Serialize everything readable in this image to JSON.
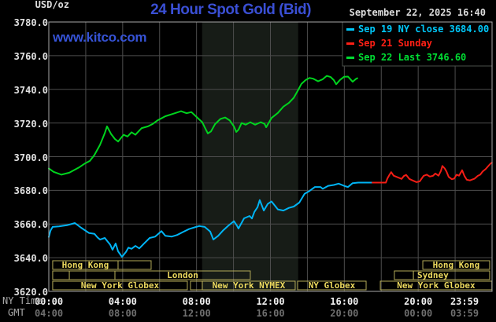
{
  "header": {
    "units_label": "USD/oz",
    "title": "24 Hour Spot Gold (Bid)",
    "title_color": "#3a4fd4",
    "datetime": "September 22, 2025 16:40",
    "watermark": "www.kitco.com",
    "watermark_color": "#3653d6"
  },
  "legend": {
    "items": [
      {
        "label": "Sep 19 NY close 3684.00",
        "color": "#00c8fa"
      },
      {
        "label": "Sep 21 Sunday",
        "color": "#ff1f15"
      },
      {
        "label": "Sep 22 Last 3746.60",
        "color": "#00dd33"
      }
    ]
  },
  "axes": {
    "ny_time_label": "NY Time",
    "gmt_label": "GMT",
    "y_ticks": [
      "3780.0",
      "3760.0",
      "3740.0",
      "3720.0",
      "3700.0",
      "3680.0",
      "3660.0",
      "3640.0",
      "3620.0"
    ],
    "x_ticks_ny": [
      "00:00",
      "04:00",
      "08:00",
      "12:00",
      "16:00",
      "20:00",
      "23:59"
    ],
    "x_ticks_gmt": [
      "04:00",
      "08:00",
      "12:00",
      "16:00",
      "20:00",
      "00:00",
      "03:59"
    ]
  },
  "colors": {
    "background": "#000000",
    "grid": "#4d4d4d",
    "border": "#a9a9a9",
    "legend_border": "#4a4f4a",
    "band": "#171c17",
    "session_border": "#b3aa58",
    "session_text": "#ecd95e"
  },
  "chart_data": {
    "type": "line",
    "title": "24 Hour Spot Gold (Bid)",
    "x_unit": "NY time, hours 0-24",
    "xlim": [
      0,
      24
    ],
    "ylim": [
      3620,
      3780
    ],
    "y_grid_step": 20,
    "x_grid_step_hours": 2,
    "highlight_band_hours": [
      8.3,
      13.5
    ],
    "series": [
      {
        "name": "Sep 22 Last 3746.60",
        "color": "#00d41e",
        "points": [
          [
            0,
            3693
          ],
          [
            0.26,
            3691
          ],
          [
            0.68,
            3689.3
          ],
          [
            1.11,
            3690.5
          ],
          [
            1.62,
            3693.5
          ],
          [
            1.96,
            3696
          ],
          [
            2.22,
            3697.5
          ],
          [
            2.47,
            3701
          ],
          [
            2.77,
            3707
          ],
          [
            3.03,
            3714
          ],
          [
            3.15,
            3718
          ],
          [
            3.37,
            3713.5
          ],
          [
            3.58,
            3710.5
          ],
          [
            3.75,
            3709
          ],
          [
            4.05,
            3713
          ],
          [
            4.26,
            3712
          ],
          [
            4.48,
            3714.5
          ],
          [
            4.69,
            3713
          ],
          [
            4.9,
            3715.5
          ],
          [
            5.03,
            3717
          ],
          [
            5.37,
            3718
          ],
          [
            5.63,
            3719.5
          ],
          [
            5.88,
            3721.5
          ],
          [
            6.31,
            3724
          ],
          [
            6.74,
            3725.5
          ],
          [
            7.16,
            3727
          ],
          [
            7.46,
            3725.8
          ],
          [
            7.72,
            3726.5
          ],
          [
            8.01,
            3723.5
          ],
          [
            8.31,
            3720.5
          ],
          [
            8.44,
            3717.5
          ],
          [
            8.61,
            3713.8
          ],
          [
            8.78,
            3715
          ],
          [
            9,
            3719.3
          ],
          [
            9.29,
            3722.4
          ],
          [
            9.55,
            3723.3
          ],
          [
            9.8,
            3721.5
          ],
          [
            10.02,
            3718
          ],
          [
            10.15,
            3714.7
          ],
          [
            10.27,
            3716
          ],
          [
            10.44,
            3720
          ],
          [
            10.66,
            3719
          ],
          [
            10.91,
            3720.5
          ],
          [
            11.17,
            3719
          ],
          [
            11.47,
            3720.5
          ],
          [
            11.68,
            3719.5
          ],
          [
            11.77,
            3717.5
          ],
          [
            12.06,
            3723
          ],
          [
            12.4,
            3726
          ],
          [
            12.7,
            3729.7
          ],
          [
            13,
            3732
          ],
          [
            13.26,
            3735
          ],
          [
            13.47,
            3739
          ],
          [
            13.68,
            3743.3
          ],
          [
            13.9,
            3745.5
          ],
          [
            14.11,
            3746.8
          ],
          [
            14.32,
            3746.3
          ],
          [
            14.58,
            3744.8
          ],
          [
            14.83,
            3746
          ],
          [
            15.05,
            3748
          ],
          [
            15.26,
            3747.3
          ],
          [
            15.43,
            3745.5
          ],
          [
            15.56,
            3743
          ],
          [
            15.77,
            3745.6
          ],
          [
            15.99,
            3747.5
          ],
          [
            16.2,
            3747.6
          ],
          [
            16.33,
            3746
          ],
          [
            16.45,
            3744.5
          ],
          [
            16.63,
            3746.2
          ],
          [
            16.7,
            3746.6
          ]
        ]
      },
      {
        "name": "Sep 19 NY close 3684.00",
        "color": "#00b4f5",
        "points": [
          [
            0,
            3652.3
          ],
          [
            0.09,
            3656
          ],
          [
            0.21,
            3658.3
          ],
          [
            0.55,
            3658.6
          ],
          [
            0.98,
            3659.3
          ],
          [
            1.41,
            3660.6
          ],
          [
            1.75,
            3657.8
          ],
          [
            2.17,
            3654.7
          ],
          [
            2.47,
            3654.2
          ],
          [
            2.64,
            3652
          ],
          [
            2.77,
            3650.8
          ],
          [
            3.03,
            3651.7
          ],
          [
            3.33,
            3647.6
          ],
          [
            3.45,
            3644.7
          ],
          [
            3.62,
            3648.4
          ],
          [
            3.75,
            3643.8
          ],
          [
            3.96,
            3640.5
          ],
          [
            4.18,
            3643.5
          ],
          [
            4.31,
            3646
          ],
          [
            4.48,
            3645.3
          ],
          [
            4.69,
            3647
          ],
          [
            4.9,
            3645.5
          ],
          [
            5.16,
            3648.4
          ],
          [
            5.46,
            3651.7
          ],
          [
            5.76,
            3652.5
          ],
          [
            6.1,
            3655.8
          ],
          [
            6.31,
            3653
          ],
          [
            6.65,
            3652.5
          ],
          [
            6.95,
            3653.5
          ],
          [
            7.29,
            3655.4
          ],
          [
            7.59,
            3657
          ],
          [
            7.89,
            3658
          ],
          [
            8.14,
            3658.8
          ],
          [
            8.44,
            3658.3
          ],
          [
            8.74,
            3655.5
          ],
          [
            8.91,
            3650.8
          ],
          [
            9.17,
            3653
          ],
          [
            9.42,
            3656
          ],
          [
            9.72,
            3659
          ],
          [
            10.02,
            3661.7
          ],
          [
            10.19,
            3659
          ],
          [
            10.27,
            3657.3
          ],
          [
            10.57,
            3663.4
          ],
          [
            10.87,
            3664.8
          ],
          [
            11,
            3663.3
          ],
          [
            11.13,
            3667.2
          ],
          [
            11.3,
            3670
          ],
          [
            11.42,
            3674.2
          ],
          [
            11.64,
            3668
          ],
          [
            11.85,
            3671.9
          ],
          [
            12.06,
            3673.4
          ],
          [
            12.4,
            3668.7
          ],
          [
            12.7,
            3668
          ],
          [
            13,
            3669.6
          ],
          [
            13.26,
            3670.4
          ],
          [
            13.56,
            3672.7
          ],
          [
            13.85,
            3678
          ],
          [
            14.11,
            3679.6
          ],
          [
            14.41,
            3682
          ],
          [
            14.71,
            3682
          ],
          [
            14.83,
            3680.9
          ],
          [
            15.13,
            3682.7
          ],
          [
            15.43,
            3683.2
          ],
          [
            15.69,
            3684
          ],
          [
            16.03,
            3682.5
          ],
          [
            16.2,
            3682
          ],
          [
            16.45,
            3684.3
          ],
          [
            16.75,
            3684.6
          ],
          [
            17.52,
            3684.6
          ]
        ]
      },
      {
        "name": "Sep 21 Sunday",
        "color": "#f31d15",
        "points": [
          [
            17.52,
            3684.6
          ],
          [
            18.25,
            3684.6
          ],
          [
            18.33,
            3687
          ],
          [
            18.46,
            3689.5
          ],
          [
            18.54,
            3690.8
          ],
          [
            18.67,
            3688.7
          ],
          [
            18.88,
            3687.8
          ],
          [
            19.1,
            3686.8
          ],
          [
            19.22,
            3688.5
          ],
          [
            19.35,
            3689.2
          ],
          [
            19.52,
            3686.8
          ],
          [
            19.69,
            3685.9
          ],
          [
            19.91,
            3684.9
          ],
          [
            20.08,
            3685.3
          ],
          [
            20.29,
            3688.6
          ],
          [
            20.46,
            3689.3
          ],
          [
            20.63,
            3688.2
          ],
          [
            20.8,
            3688.6
          ],
          [
            20.93,
            3690
          ],
          [
            21.1,
            3688.7
          ],
          [
            21.23,
            3691.5
          ],
          [
            21.31,
            3694.5
          ],
          [
            21.44,
            3693
          ],
          [
            21.53,
            3691.2
          ],
          [
            21.65,
            3688
          ],
          [
            21.82,
            3686.6
          ],
          [
            21.95,
            3687
          ],
          [
            22.08,
            3689.3
          ],
          [
            22.21,
            3688.7
          ],
          [
            22.38,
            3692
          ],
          [
            22.51,
            3688.5
          ],
          [
            22.63,
            3686.3
          ],
          [
            22.8,
            3685.9
          ],
          [
            23.06,
            3687
          ],
          [
            23.23,
            3688.6
          ],
          [
            23.36,
            3689.3
          ],
          [
            23.49,
            3691.2
          ],
          [
            23.66,
            3692.7
          ],
          [
            23.78,
            3694.2
          ],
          [
            23.91,
            3695.8
          ],
          [
            23.99,
            3696.5
          ]
        ]
      }
    ],
    "sessions": {
      "rows": [
        {
          "boxes": [
            {
              "label": "Hong Kong",
              "h0": 0.21,
              "h1": 3.75
            },
            {
              "label": "",
              "h0": 3.75,
              "h1": 5.54
            },
            {
              "label": "Hong Kong",
              "h0": 20.25,
              "h1": 23.87
            }
          ]
        },
        {
          "boxes": [
            {
              "label": "",
              "h0": 0.21,
              "h1": 1.11
            },
            {
              "label": "",
              "h0": 1.11,
              "h1": 3.58
            },
            {
              "label": "London",
              "h0": 3.58,
              "h1": 10.91
            },
            {
              "label": "",
              "h0": 18.71,
              "h1": 19.74
            },
            {
              "label": "Sydney",
              "h0": 19.74,
              "h1": 23.87,
              "label_h": 20.8
            }
          ]
        },
        {
          "boxes": [
            {
              "label": "New York Globex",
              "h0": 0.21,
              "h1": 7.5
            },
            {
              "label": "",
              "h0": 7.67,
              "h1": 8.31
            },
            {
              "label": "New York NYMEX",
              "h0": 8.31,
              "h1": 13.34
            },
            {
              "label": "NY Globex",
              "h0": 13.47,
              "h1": 17.18
            },
            {
              "label": "New York Globex",
              "h0": 17.95,
              "h1": 23.99
            }
          ]
        }
      ]
    }
  }
}
